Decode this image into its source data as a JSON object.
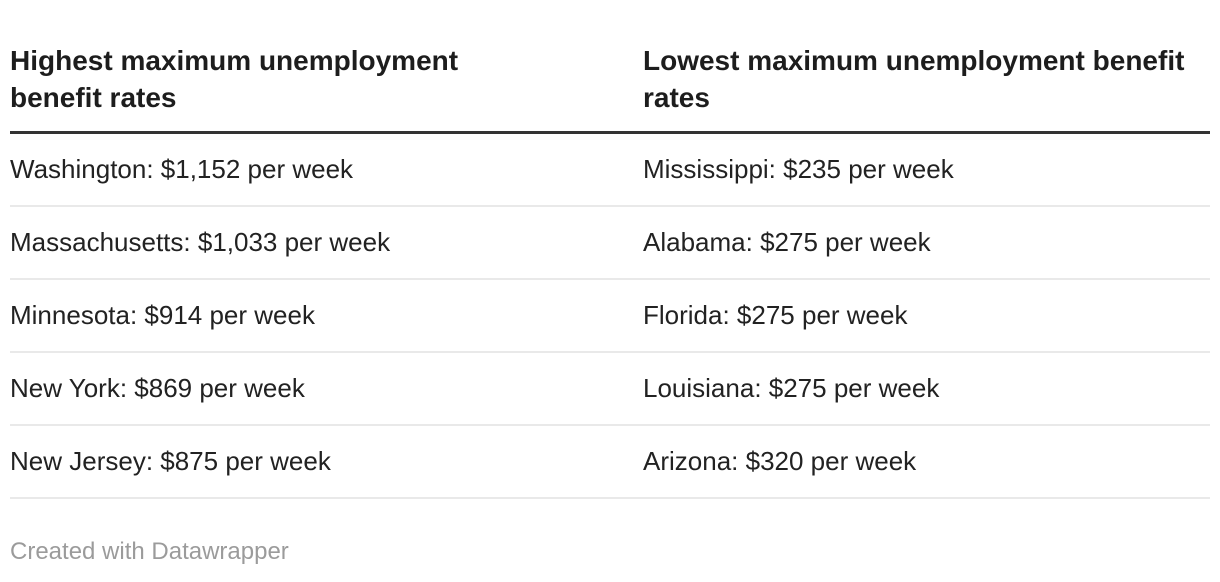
{
  "table": {
    "header": {
      "left": "Highest maximum unemployment benefit rates",
      "right": "Lowest maximum unemployment benefit rates"
    },
    "rows": [
      {
        "left": "Washington: $1,152 per week",
        "right": "Mississippi: $235 per week"
      },
      {
        "left": "Massachusetts: $1,033 per week",
        "right": "Alabama: $275 per week"
      },
      {
        "left": "Minnesota: $914 per week",
        "right": "Florida: $275 per week"
      },
      {
        "left": "New York: $869 per week",
        "right": "Louisiana: $275 per week"
      },
      {
        "left": "New Jersey: $875 per week",
        "right": "Arizona: $320 per week"
      }
    ]
  },
  "footer": {
    "attribution": "Created with Datawrapper"
  },
  "colors": {
    "background": "#ffffff",
    "text": "#222222",
    "header_text": "#1d1d1d",
    "header_rule": "#333333",
    "row_divider": "#e9e9e9",
    "footer_text": "#9b9b9b"
  },
  "chart_data": {
    "type": "table",
    "columns": [
      "Highest maximum unemployment benefit rates",
      "Lowest maximum unemployment benefit rates"
    ],
    "rows": [
      [
        "Washington: $1,152 per week",
        "Mississippi: $235 per week"
      ],
      [
        "Massachusetts: $1,033 per week",
        "Alabama: $275 per week"
      ],
      [
        "Minnesota: $914 per week",
        "Florida: $275 per week"
      ],
      [
        "New York: $869 per week",
        "Louisiana: $275 per week"
      ],
      [
        "New Jersey: $875 per week",
        "Arizona: $320 per week"
      ]
    ],
    "series": [
      {
        "name": "Highest maximum unemployment benefit rates",
        "unit": "USD per week",
        "states": [
          "Washington",
          "Massachusetts",
          "Minnesota",
          "New York",
          "New Jersey"
        ],
        "values": [
          1152,
          1033,
          914,
          869,
          875
        ]
      },
      {
        "name": "Lowest maximum unemployment benefit rates",
        "unit": "USD per week",
        "states": [
          "Mississippi",
          "Alabama",
          "Florida",
          "Louisiana",
          "Arizona"
        ],
        "values": [
          235,
          275,
          275,
          275,
          320
        ]
      }
    ],
    "attribution": "Created with Datawrapper",
    "layout": {
      "grid": "horizontal row dividers",
      "legend": "none"
    }
  }
}
